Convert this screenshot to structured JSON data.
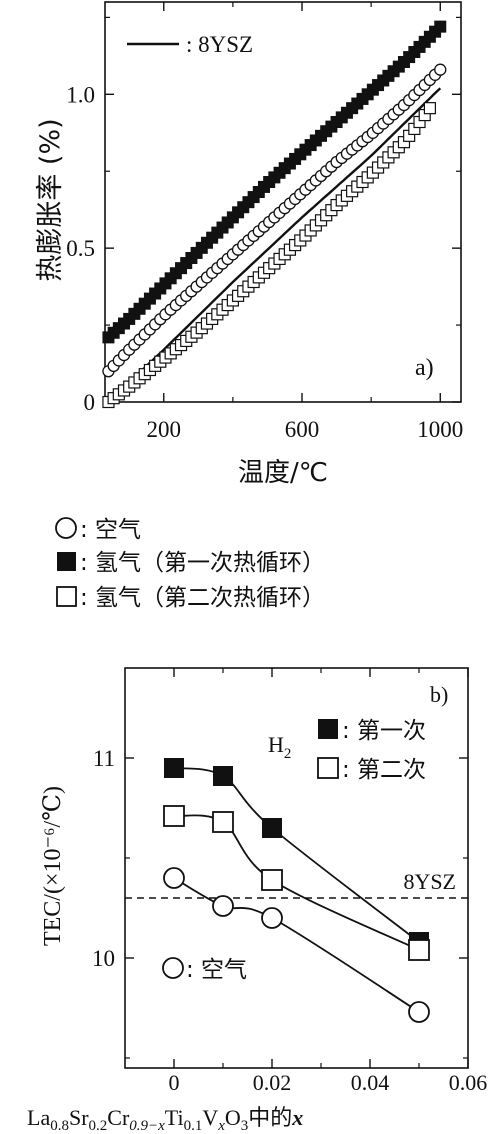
{
  "chart_data": [
    {
      "type": "scatter",
      "ylabel": "热膨胀率 (%)",
      "xlabel": "温度/℃",
      "panel_label": "a)",
      "xlim": [
        30,
        1060
      ],
      "ylim": [
        0,
        1.3
      ],
      "xticks": [
        "200",
        "600",
        "1000"
      ],
      "yticks": [
        "0",
        "0.5",
        "1.0"
      ],
      "series": [
        {
          "name": "8YSZ",
          "marker": "line",
          "x": [
            40,
            200,
            400,
            600,
            800,
            1000
          ],
          "y": [
            0.0,
            0.17,
            0.39,
            0.6,
            0.8,
            1.02
          ]
        },
        {
          "name": "空气",
          "marker": "circle-open",
          "x": [
            40,
            100,
            200,
            300,
            400,
            500,
            600,
            700,
            800,
            900,
            1000
          ],
          "y": [
            0.1,
            0.17,
            0.28,
            0.38,
            0.48,
            0.58,
            0.68,
            0.78,
            0.87,
            0.97,
            1.08
          ]
        },
        {
          "name": "氢气 (第一次热循环)",
          "marker": "square-filled",
          "x": [
            40,
            100,
            200,
            300,
            400,
            500,
            600,
            700,
            800,
            900,
            1000
          ],
          "y": [
            0.21,
            0.27,
            0.38,
            0.49,
            0.6,
            0.71,
            0.81,
            0.91,
            1.01,
            1.11,
            1.22
          ]
        },
        {
          "name": "氢气 (第二次热循环)",
          "marker": "square-open",
          "x": [
            40,
            100,
            200,
            300,
            400,
            500,
            600,
            700,
            800,
            900,
            980
          ],
          "y": [
            0.0,
            0.05,
            0.14,
            0.23,
            0.33,
            0.43,
            0.53,
            0.64,
            0.74,
            0.85,
            0.97
          ]
        }
      ],
      "legend_line_label": ": 8YSZ",
      "legend_below": [
        ": 空气",
        ": 氢气（第一次热循环）",
        ": 氢气（第二次热循环）"
      ]
    },
    {
      "type": "line",
      "ylabel": "TEC/(×10⁻⁶/℃)",
      "xlabel_parts": {
        "base": "La",
        "s1": "0.8",
        "b2": "Sr",
        "s2": "0.2",
        "b3": "Cr",
        "s3": "0.9−x",
        "b4": "Ti",
        "s4": "0.1",
        "b5": "V",
        "s5": "x",
        "b6": "O",
        "s6": "3",
        "tail": "中的",
        "var": "x"
      },
      "panel_label": "b)",
      "atmosphere_label": "H",
      "atmosphere_sub": "2",
      "xlim": [
        -0.01,
        0.06
      ],
      "ylim": [
        9.45,
        11.45
      ],
      "xticks": [
        "0",
        "0.02",
        "0.04",
        "0.06"
      ],
      "yticks": [
        "10",
        "11"
      ],
      "reference_line": {
        "label": "8YSZ",
        "y": 10.3
      },
      "x": [
        0,
        0.01,
        0.02,
        0.05
      ],
      "series": [
        {
          "name": "第一次",
          "marker": "square-filled",
          "values": [
            10.95,
            10.91,
            10.65,
            10.08
          ]
        },
        {
          "name": "第二次",
          "marker": "square-open",
          "values": [
            10.71,
            10.68,
            10.39,
            10.04
          ]
        },
        {
          "name": "空气",
          "marker": "circle-open",
          "values": [
            10.4,
            10.26,
            10.2,
            9.73
          ]
        }
      ],
      "legend_labels": [
        ": 第一次",
        ": 第二次"
      ],
      "air_label": ": 空气"
    }
  ]
}
